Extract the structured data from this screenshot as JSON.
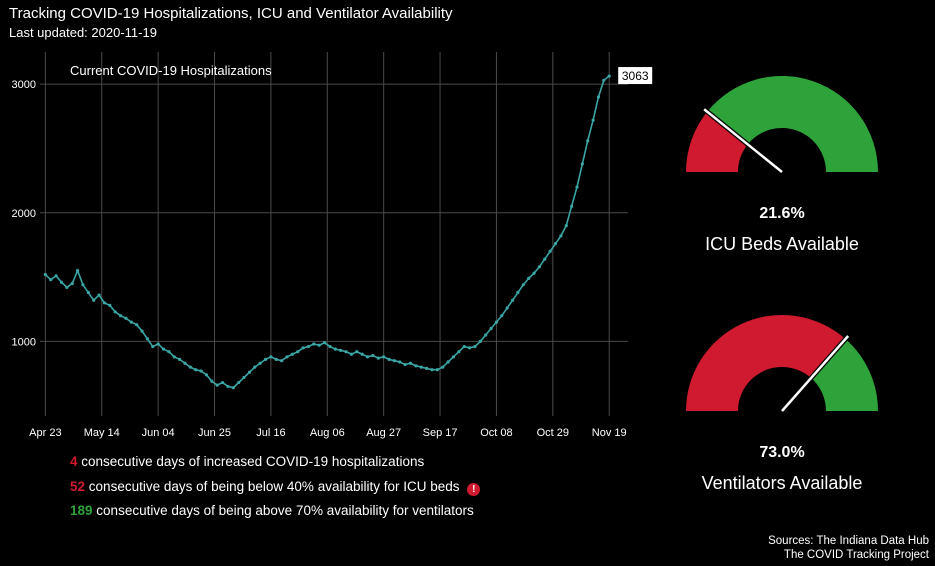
{
  "title": "Tracking COVID-19 Hospitalizations, ICU and Ventilator Availability",
  "subtitle": "Last updated: 2020-11-19",
  "colors": {
    "line": "#3aa6a6",
    "red": "#cf1a2f",
    "green": "#2ea33a",
    "grid": "#4a4a4a",
    "text": "#ffffff"
  },
  "chart_data": {
    "type": "line",
    "title": "Current COVID-19 Hospitalizations",
    "x_tick_labels": [
      "Apr 23",
      "May 14",
      "Jun 04",
      "Jun 25",
      "Jul 16",
      "Aug 06",
      "Aug 27",
      "Sep 17",
      "Oct 08",
      "Oct 29",
      "Nov 19"
    ],
    "y_ticks": [
      1000,
      2000,
      3000
    ],
    "ylim": [
      420,
      3250
    ],
    "x_range": [
      "2020-04-21",
      "2020-11-26"
    ],
    "grid": true,
    "last_value_label": "3063",
    "series": [
      {
        "x": [
          "2020-04-23",
          "2020-04-25",
          "2020-04-27",
          "2020-04-29",
          "2020-05-01",
          "2020-05-03",
          "2020-05-05",
          "2020-05-07",
          "2020-05-09",
          "2020-05-11",
          "2020-05-13",
          "2020-05-15",
          "2020-05-17",
          "2020-05-19",
          "2020-05-21",
          "2020-05-23",
          "2020-05-25",
          "2020-05-27",
          "2020-05-29",
          "2020-05-31",
          "2020-06-02",
          "2020-06-04",
          "2020-06-06",
          "2020-06-08",
          "2020-06-10",
          "2020-06-12",
          "2020-06-14",
          "2020-06-16",
          "2020-06-18",
          "2020-06-20",
          "2020-06-22",
          "2020-06-24",
          "2020-06-26",
          "2020-06-28",
          "2020-06-30",
          "2020-07-02",
          "2020-07-04",
          "2020-07-06",
          "2020-07-08",
          "2020-07-10",
          "2020-07-12",
          "2020-07-14",
          "2020-07-16",
          "2020-07-18",
          "2020-07-20",
          "2020-07-22",
          "2020-07-24",
          "2020-07-26",
          "2020-07-28",
          "2020-07-30",
          "2020-08-01",
          "2020-08-03",
          "2020-08-05",
          "2020-08-07",
          "2020-08-09",
          "2020-08-11",
          "2020-08-13",
          "2020-08-15",
          "2020-08-17",
          "2020-08-19",
          "2020-08-21",
          "2020-08-23",
          "2020-08-25",
          "2020-08-27",
          "2020-08-29",
          "2020-08-31",
          "2020-09-02",
          "2020-09-04",
          "2020-09-06",
          "2020-09-08",
          "2020-09-10",
          "2020-09-12",
          "2020-09-14",
          "2020-09-16",
          "2020-09-18",
          "2020-09-20",
          "2020-09-22",
          "2020-09-24",
          "2020-09-26",
          "2020-09-28",
          "2020-09-30",
          "2020-10-02",
          "2020-10-04",
          "2020-10-06",
          "2020-10-08",
          "2020-10-10",
          "2020-10-12",
          "2020-10-14",
          "2020-10-16",
          "2020-10-18",
          "2020-10-20",
          "2020-10-22",
          "2020-10-24",
          "2020-10-26",
          "2020-10-28",
          "2020-10-30",
          "2020-11-01",
          "2020-11-03",
          "2020-11-05",
          "2020-11-07",
          "2020-11-09",
          "2020-11-11",
          "2020-11-13",
          "2020-11-15",
          "2020-11-17",
          "2020-11-19"
        ],
        "values": [
          1520,
          1480,
          1510,
          1460,
          1420,
          1450,
          1550,
          1440,
          1380,
          1320,
          1360,
          1300,
          1280,
          1230,
          1200,
          1180,
          1150,
          1130,
          1080,
          1020,
          960,
          980,
          940,
          920,
          880,
          860,
          830,
          800,
          780,
          770,
          740,
          690,
          660,
          680,
          650,
          640,
          680,
          720,
          760,
          800,
          830,
          860,
          880,
          860,
          850,
          880,
          900,
          920,
          950,
          960,
          980,
          970,
          990,
          960,
          940,
          930,
          920,
          900,
          920,
          900,
          880,
          890,
          870,
          880,
          860,
          850,
          840,
          820,
          830,
          810,
          800,
          790,
          780,
          780,
          800,
          840,
          880,
          920,
          960,
          950,
          960,
          1000,
          1050,
          1100,
          1150,
          1200,
          1260,
          1320,
          1380,
          1440,
          1490,
          1530,
          1580,
          1640,
          1700,
          1760,
          1820,
          1900,
          2050,
          2200,
          2380,
          2560,
          2720,
          2900,
          3030,
          3063
        ]
      }
    ]
  },
  "stats": [
    {
      "num": "4",
      "text": "consecutive days of increased COVID-19 hospitalizations",
      "color": "#cf1a2f"
    },
    {
      "num": "52",
      "text": "consecutive days of being below 40% availability for ICU beds",
      "color": "#cf1a2f",
      "icon": "exclamation-circle-icon"
    },
    {
      "num": "189",
      "text": "consecutive days of being above 70% availability for ventilators",
      "color": "#2ea33a"
    }
  ],
  "gauges": [
    {
      "value": 21.6,
      "value_label": "21.6%",
      "label": "ICU Beds Available",
      "available_color": "#2ea33a",
      "used_color": "#cf1a2f"
    },
    {
      "value": 73.0,
      "value_label": "73.0%",
      "label": "Ventilators Available",
      "available_color": "#2ea33a",
      "used_color": "#cf1a2f"
    }
  ],
  "sources": [
    "Sources: The Indiana Data Hub",
    "The COVID Tracking Project"
  ]
}
